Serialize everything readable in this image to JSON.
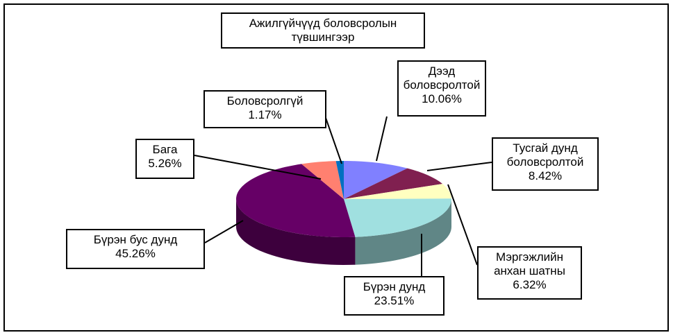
{
  "chart_data": {
    "type": "pie",
    "title": "Ажилгүйчүүд боловсролын\nтүвшингээр",
    "categories": [
      "Дээд\nболовсролтой",
      "Тусгай дунд\nболовсролтой",
      "Мэргэжлийн\nанхан шатны",
      "Бүрэн дунд",
      "Бүрэн бус дунд",
      "Бага",
      "Боловсролгүй"
    ],
    "values": [
      10.06,
      8.42,
      6.32,
      23.51,
      45.26,
      5.26,
      1.17
    ],
    "value_labels": [
      "10.06%",
      "8.42%",
      "6.32%",
      "23.51%",
      "45.26%",
      "5.26%",
      "1.17%"
    ],
    "colors": [
      "#8080ff",
      "#802050",
      "#ffffc0",
      "#a0e0e0",
      "#660066",
      "#ff8070",
      "#0070c0"
    ]
  }
}
